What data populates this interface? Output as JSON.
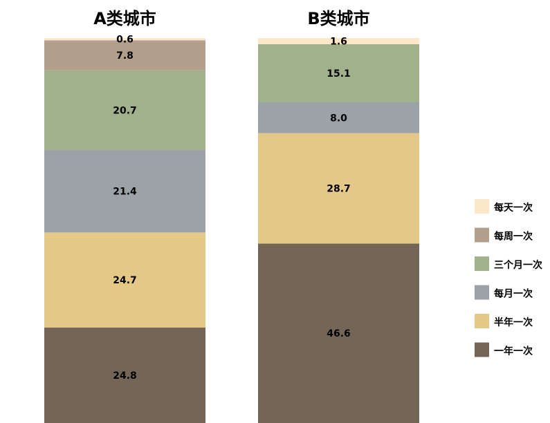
{
  "chart_data": {
    "type": "bar",
    "stacked": true,
    "orientation": "vertical",
    "series": [
      {
        "name": "一年一次",
        "color": "#736656"
      },
      {
        "name": "半年一次",
        "color": "#e3c888"
      },
      {
        "name": "每月一次",
        "color": "#9ca3a8"
      },
      {
        "name": "三个月一次",
        "color": "#a0b18b"
      },
      {
        "name": "每周一次",
        "color": "#b19e8b"
      },
      {
        "name": "每天一次",
        "color": "#fde7c9"
      }
    ],
    "panels": [
      {
        "title": "A类城市",
        "values": [
          24.8,
          24.7,
          21.4,
          20.7,
          7.8,
          0.6
        ],
        "labels": [
          "24.8",
          "24.7",
          "21.4",
          "20.7",
          "7.8",
          "0.6"
        ]
      },
      {
        "title": "B类城市",
        "values": [
          46.6,
          28.7,
          8.0,
          15.1,
          0,
          1.6
        ],
        "labels": [
          "46.6",
          "28.7",
          "8.0",
          "15.1",
          "",
          "1.6"
        ]
      }
    ],
    "legend_position": "right",
    "legend_order": [
      "每天一次",
      "每周一次",
      "三个月一次",
      "每月一次",
      "半年一次",
      "一年一次"
    ]
  }
}
